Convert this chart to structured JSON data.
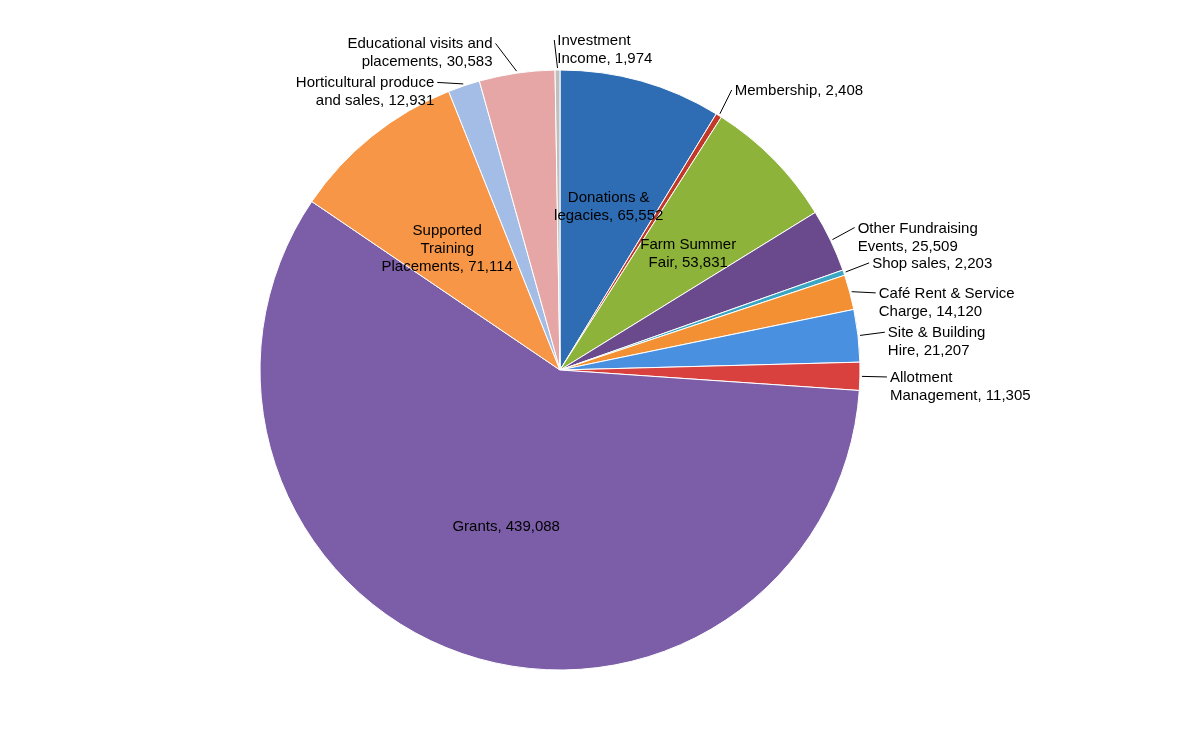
{
  "chart_data": {
    "type": "pie",
    "categories": [
      "Donations & legacies",
      "Membership",
      "Farm Summer Fair",
      "Other Fundraising Events",
      "Shop sales",
      "Café Rent & Service Charge",
      "Site & Building Hire",
      "Allotment Management",
      "Grants",
      "Supported Training Placements",
      "Horticultural produce and sales",
      "Educational visits and placements",
      "Investment Income"
    ],
    "values": [
      65552,
      2408,
      53831,
      25509,
      2203,
      14120,
      21207,
      11305,
      439088,
      71114,
      12931,
      30583,
      1974
    ],
    "value_labels": [
      "65,552",
      "2,408",
      "53,831",
      "25,509",
      "2,203",
      "14,120",
      "21,207",
      "11,305",
      "439,088",
      "71,114",
      "12,931",
      "30,583",
      "1,974"
    ],
    "colors": [
      "#2e6db4",
      "#c0392b",
      "#8db33a",
      "#6a4a8c",
      "#3aa6c4",
      "#f39033",
      "#4a90e0",
      "#d9413e",
      "#7b5ea7",
      "#f79646",
      "#a3bde6",
      "#e6a6a6",
      "#bfbfbf"
    ]
  }
}
